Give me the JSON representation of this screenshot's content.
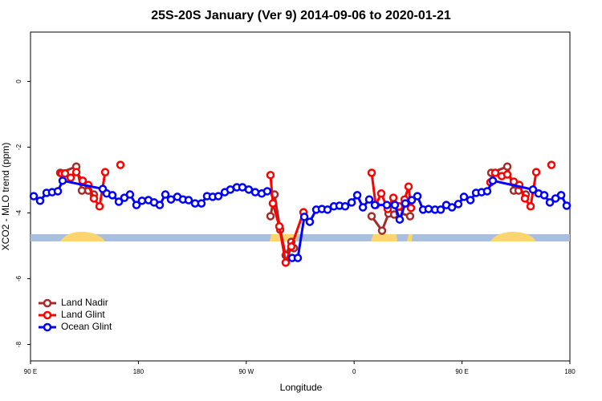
{
  "chart_data": {
    "type": "line",
    "title": "25S-20S January (Ver 9)   2014-09-06 to 2020-01-21",
    "x_label": "Longitude",
    "y_label": "XCO2 - MLO trend (ppm)",
    "xlim": [
      90,
      540
    ],
    "ylim": [
      -8.5,
      1.5
    ],
    "xticks": [
      {
        "value": 90,
        "label": "90 E"
      },
      180,
      {
        "value": 270,
        "label": "90 W"
      },
      {
        "value": 360,
        "label": "0"
      },
      {
        "value": 450,
        "label": "90 E"
      },
      {
        "value": 540,
        "label": "180"
      }
    ],
    "yticks": [
      -8,
      -6,
      -4,
      -2,
      0
    ],
    "legend": "bottom-left",
    "series": [
      {
        "name": "Land Nadir",
        "color": "#a52a2a",
        "x": [
          114.8,
          128.2,
          132.9,
          138.2,
          142.9,
          null,
          290.2,
          293.6,
          298.3,
          302.9,
          307.6,
          309.7,
          null,
          374.6,
          383.3,
          388.7,
          393.4,
          398,
          406.7,
          null,
          474.4,
          487.8,
          493.2,
          497.2,
          503.2
        ],
        "values": [
          -2.78,
          -2.59,
          -3.32,
          -3.32,
          -3.44,
          null,
          -4.1,
          -3.44,
          -4.51,
          -5.29,
          -4.88,
          -5.07,
          null,
          -4.1,
          -4.54,
          -4.02,
          -4.05,
          -4.0,
          -4.1,
          null,
          -2.78,
          -2.59,
          -3.32,
          -3.32,
          -3.44
        ]
      },
      {
        "name": "Land Glint",
        "color": "#ff0000",
        "x": [
          116.1,
          118.8,
          123.5,
          128.2,
          133.5,
          138.2,
          142.9,
          147.6,
          152.3,
          null,
          165,
          null,
          290.2,
          292.2,
          297.6,
          302.9,
          307.6,
          317.7,
          null,
          374.6,
          378,
          382.6,
          388,
          392.7,
          397.4,
          402.1,
          405.4,
          407.4,
          null,
          473.7,
          477.7,
          483.1,
          487.8,
          493.2,
          497.8,
          502.5,
          507.2,
          511.9,
          null,
          524.6
        ],
        "values": [
          -2.8,
          -2.8,
          -2.93,
          -2.76,
          -3.02,
          -3.15,
          -3.56,
          -3.8,
          -2.76,
          null,
          -2.54,
          null,
          -2.85,
          -3.71,
          -4.41,
          -5.51,
          -5.02,
          -3.98,
          null,
          -2.78,
          -3.76,
          -3.41,
          -3.88,
          -3.54,
          -3.8,
          -3.59,
          -3.2,
          -3.85,
          null,
          -3.07,
          -2.78,
          -2.88,
          -2.83,
          -3.05,
          -3.15,
          -3.56,
          -3.8,
          -2.76,
          null,
          -2.54
        ]
      },
      {
        "name": "Ocean Glint",
        "color": "#0000ff",
        "x": [
          92.7,
          98,
          103.4,
          108,
          112.8,
          116.8,
          150.3,
          153.6,
          158.3,
          163.7,
          168.3,
          173,
          178.4,
          183,
          188.4,
          193.1,
          197.8,
          202.5,
          207.2,
          212.5,
          217.2,
          221.9,
          227.3,
          232.6,
          237.3,
          242,
          246.7,
          252.1,
          256.7,
          262.1,
          266.8,
          272.1,
          277.5,
          282.9,
          287.5,
          null,
          308.3,
          313,
          318.4,
          323,
          328.4,
          333.1,
          337.8,
          343.1,
          347.8,
          352.5,
          357.9,
          362.6,
          367.3,
          372.6,
          377.3,
          387.3,
          394,
          398,
          402.7,
          408.1,
          412.8,
          417.5,
          422.1,
          427.5,
          432.2,
          436.9,
          441.6,
          446.9,
          451.6,
          457,
          461.7,
          466.3,
          471,
          475.7,
          509.2,
          513.9,
          518.6,
          523.3,
          528,
          532.7,
          537.3
        ],
        "values": [
          -3.49,
          -3.63,
          -3.39,
          -3.37,
          -3.34,
          -3.02,
          -3.27,
          -3.41,
          -3.46,
          -3.66,
          -3.54,
          -3.44,
          -3.76,
          -3.63,
          -3.61,
          -3.68,
          -3.76,
          -3.44,
          -3.59,
          -3.51,
          -3.59,
          -3.61,
          -3.71,
          -3.71,
          -3.49,
          -3.51,
          -3.49,
          -3.37,
          -3.29,
          -3.22,
          -3.22,
          -3.29,
          -3.37,
          -3.41,
          -3.34,
          null,
          -5.37,
          -5.37,
          -4.12,
          -4.27,
          -3.9,
          -3.88,
          -3.9,
          -3.8,
          -3.78,
          -3.8,
          -3.68,
          -3.46,
          -3.83,
          -3.59,
          -3.76,
          -3.76,
          -3.76,
          -4.2,
          -3.71,
          -3.61,
          -3.49,
          -3.9,
          -3.88,
          -3.9,
          -3.9,
          -3.76,
          -3.83,
          -3.73,
          -3.51,
          -3.61,
          -3.39,
          -3.37,
          -3.34,
          -3.02,
          -3.29,
          -3.41,
          -3.46,
          -3.68,
          -3.56,
          -3.46,
          -3.78
        ]
      }
    ]
  }
}
